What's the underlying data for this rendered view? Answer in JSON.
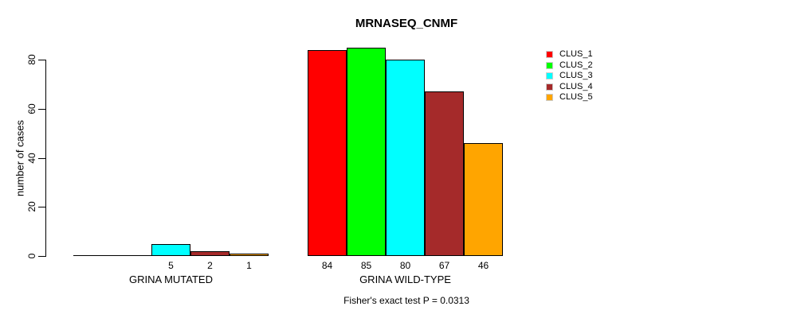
{
  "chart_data": {
    "type": "bar",
    "title": "MRNASEQ_CNMF",
    "ylabel": "number of cases",
    "xlabel": "",
    "annotation": "Fisher's exact test P = 0.0313",
    "ylim": [
      0,
      85
    ],
    "yticks": [
      0,
      20,
      40,
      60,
      80
    ],
    "grid": false,
    "legend_position": "top-right",
    "series": [
      {
        "name": "CLUS_1",
        "color": "#ff0000"
      },
      {
        "name": "CLUS_2",
        "color": "#00ff00"
      },
      {
        "name": "CLUS_3",
        "color": "#00ffff"
      },
      {
        "name": "CLUS_4",
        "color": "#a52a2a"
      },
      {
        "name": "CLUS_5",
        "color": "#ffa500"
      }
    ],
    "groups": [
      {
        "label": "GRINA MUTATED",
        "values": [
          0,
          0,
          5,
          2,
          1
        ],
        "value_labels": [
          "",
          "",
          "5",
          "2",
          "1"
        ]
      },
      {
        "label": "GRINA WILD-TYPE",
        "values": [
          84,
          85,
          80,
          67,
          46
        ],
        "value_labels": [
          "84",
          "85",
          "80",
          "67",
          "46"
        ]
      }
    ]
  }
}
